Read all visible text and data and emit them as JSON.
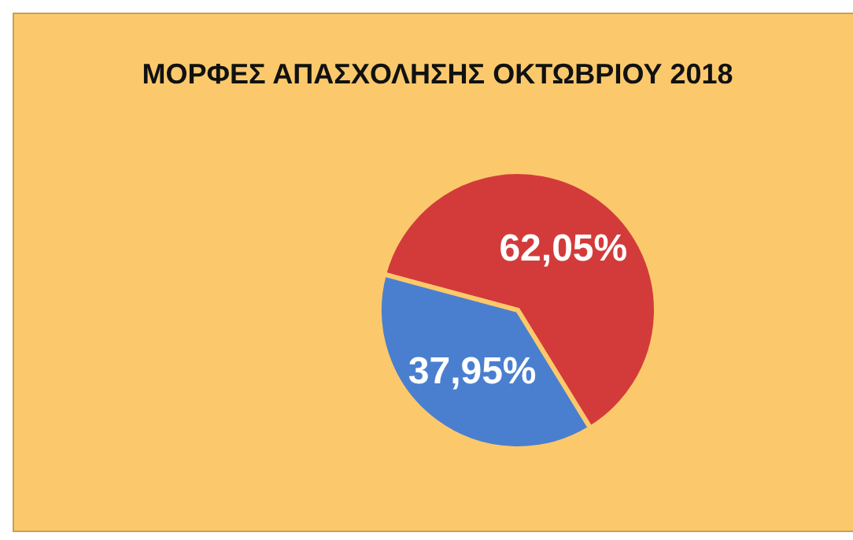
{
  "chart_data": {
    "type": "pie",
    "title": "ΜΟΡΦΕΣ ΑΠΑΣΧΟΛΗΣΗΣ ΟΚΤΩΒΡΙΟΥ 2018",
    "categories": [
      null,
      null
    ],
    "values": [
      62.05,
      37.95
    ],
    "colors": [
      "#d33b3b",
      "#4a7fcf"
    ],
    "value_labels": [
      "62,05%",
      "37,95%"
    ],
    "legend": false
  }
}
